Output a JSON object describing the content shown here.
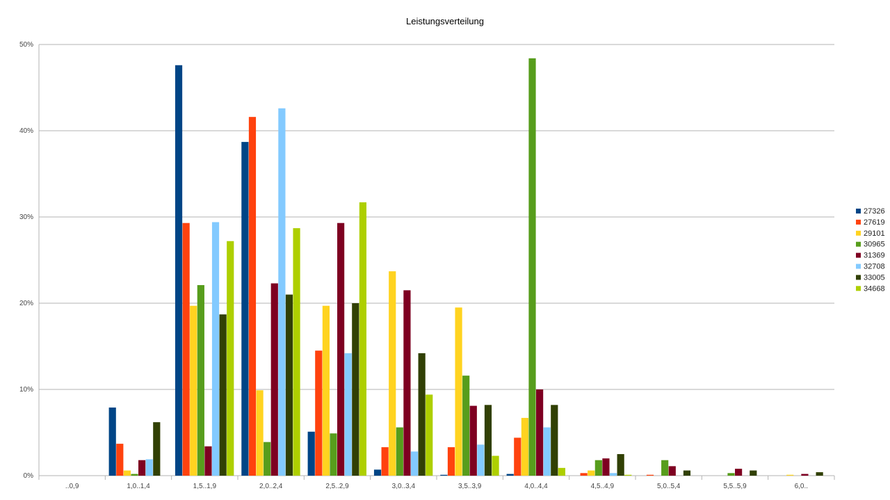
{
  "chart_data": {
    "type": "bar",
    "title": "Leistungsverteilung",
    "xlabel": "",
    "ylabel": "",
    "ylim": [
      0,
      50
    ],
    "y_ticks": [
      "0%",
      "10%",
      "20%",
      "30%",
      "40%",
      "50%"
    ],
    "grid": true,
    "legend_position": "right",
    "categories": [
      "..0,9",
      "1,0..1,4",
      "1,5..1,9",
      "2,0..2,4",
      "2,5..2,9",
      "3,0..3,4",
      "3,5..3,9",
      "4,0..4,4",
      "4,5..4,9",
      "5,0..5,4",
      "5,5..5,9",
      "6,0.."
    ],
    "series": [
      {
        "name": "27326",
        "color": "#004586",
        "values": [
          0,
          7.9,
          47.6,
          38.7,
          5.1,
          0.7,
          0.1,
          0.2,
          0,
          0,
          0,
          0
        ]
      },
      {
        "name": "27619",
        "color": "#ff420e",
        "values": [
          0,
          3.7,
          29.3,
          41.6,
          14.5,
          3.3,
          3.3,
          4.4,
          0.3,
          0.1,
          0,
          0
        ]
      },
      {
        "name": "29101",
        "color": "#ffd320",
        "values": [
          0,
          0.6,
          19.7,
          9.9,
          19.7,
          23.7,
          19.5,
          6.7,
          0.6,
          0,
          0,
          0.1
        ]
      },
      {
        "name": "30965",
        "color": "#579d1c",
        "values": [
          0,
          0.2,
          22.1,
          3.9,
          4.9,
          5.6,
          11.6,
          48.4,
          1.8,
          1.8,
          0.3,
          0
        ]
      },
      {
        "name": "31369",
        "color": "#7e0021",
        "values": [
          0,
          1.8,
          3.4,
          22.3,
          29.3,
          21.5,
          8.1,
          10.0,
          2.0,
          1.1,
          0.8,
          0.2
        ]
      },
      {
        "name": "32708",
        "color": "#83caff",
        "values": [
          0,
          1.9,
          29.4,
          42.6,
          14.2,
          2.8,
          3.6,
          5.6,
          0.3,
          0,
          0,
          0
        ]
      },
      {
        "name": "33005",
        "color": "#314004",
        "values": [
          0,
          6.2,
          18.7,
          21.0,
          20.0,
          14.2,
          8.2,
          8.2,
          2.5,
          0.6,
          0.6,
          0.4
        ]
      },
      {
        "name": "34668",
        "color": "#aecf00",
        "values": [
          0,
          0,
          27.2,
          28.7,
          31.7,
          9.4,
          2.3,
          0.9,
          0.1,
          0,
          0,
          0
        ]
      }
    ]
  }
}
